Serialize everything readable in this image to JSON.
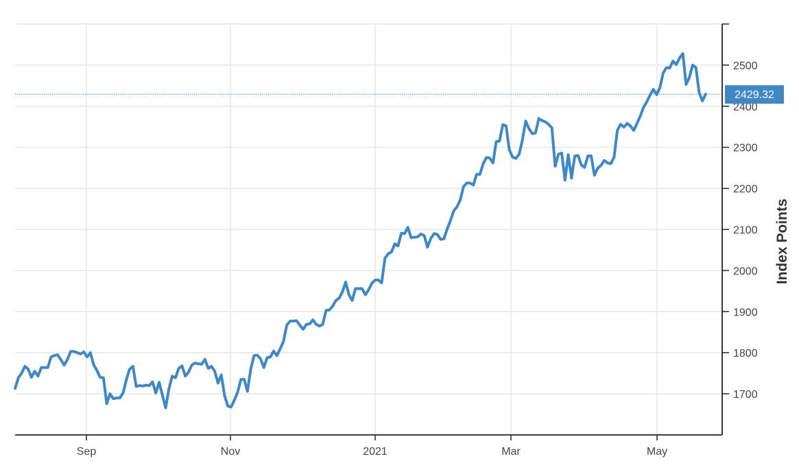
{
  "chart_data": {
    "type": "line",
    "title": "",
    "xlabel": "",
    "ylabel": "Index Points",
    "ylim": [
      1600,
      2600
    ],
    "yticks": [
      1700,
      1800,
      1900,
      2000,
      2100,
      2200,
      2300,
      2400,
      2500
    ],
    "xticks": [
      "Sep",
      "Nov",
      "2021",
      "Mar",
      "May"
    ],
    "grid": true,
    "legend": "none",
    "colors": {
      "line": "#3f88c5",
      "grid": "#e6e6e6",
      "axis": "#222222",
      "badge": "#3f88c5"
    },
    "last_value_label": "2429.32",
    "last_value": 2429.32,
    "series": [
      {
        "values": [
          1713,
          1739,
          1750,
          1767,
          1760,
          1740,
          1755,
          1743,
          1764,
          1764,
          1764,
          1790,
          1793,
          1795,
          1783,
          1770,
          1784,
          1803,
          1803,
          1800,
          1797,
          1802,
          1790,
          1800,
          1771,
          1757,
          1740,
          1739,
          1676,
          1700,
          1688,
          1690,
          1690,
          1702,
          1735,
          1760,
          1767,
          1718,
          1720,
          1719,
          1721,
          1720,
          1729,
          1702,
          1728,
          1697,
          1666,
          1712,
          1743,
          1739,
          1762,
          1768,
          1743,
          1753,
          1770,
          1775,
          1773,
          1772,
          1784,
          1762,
          1767,
          1755,
          1726,
          1746,
          1696,
          1670,
          1668,
          1685,
          1704,
          1735,
          1735,
          1706,
          1760,
          1793,
          1794,
          1785,
          1764,
          1788,
          1790,
          1804,
          1793,
          1810,
          1827,
          1867,
          1877,
          1877,
          1878,
          1867,
          1857,
          1869,
          1870,
          1880,
          1869,
          1865,
          1869,
          1903,
          1904,
          1913,
          1927,
          1933,
          1948,
          1972,
          1941,
          1927,
          1956,
          1956,
          1956,
          1941,
          1953,
          1969,
          1977,
          1977,
          1970,
          2030,
          2041,
          2045,
          2065,
          2060,
          2091,
          2090,
          2105,
          2080,
          2081,
          2082,
          2089,
          2085,
          2057,
          2078,
          2090,
          2088,
          2076,
          2077,
          2101,
          2121,
          2145,
          2155,
          2172,
          2204,
          2213,
          2213,
          2208,
          2234,
          2234,
          2260,
          2275,
          2274,
          2262,
          2314,
          2315,
          2355,
          2352,
          2294,
          2276,
          2273,
          2283,
          2318,
          2364,
          2345,
          2333,
          2335,
          2370,
          2365,
          2362,
          2356,
          2347,
          2254,
          2283,
          2286,
          2220,
          2282,
          2225,
          2279,
          2280,
          2257,
          2251,
          2279,
          2279,
          2232,
          2249,
          2256,
          2268,
          2262,
          2260,
          2276,
          2341,
          2356,
          2349,
          2358,
          2352,
          2341,
          2358,
          2376,
          2397,
          2411,
          2427,
          2441,
          2428,
          2445,
          2481,
          2494,
          2493,
          2510,
          2501,
          2517,
          2528,
          2453,
          2470,
          2500,
          2494,
          2432,
          2413,
          2429.32
        ]
      }
    ]
  }
}
